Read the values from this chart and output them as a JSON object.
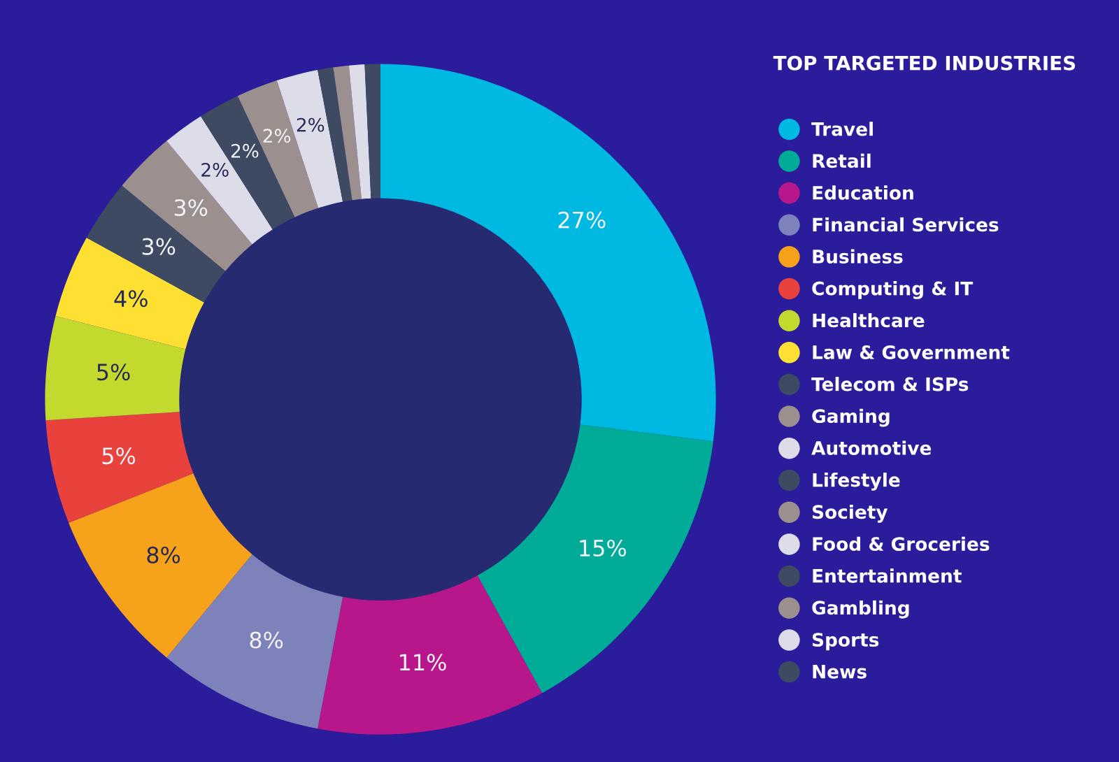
{
  "chart_data": {
    "type": "donut",
    "legend_title": "TOP TARGETED INDUSTRIES",
    "categories": [
      "Travel",
      "Retail",
      "Education",
      "Financial Services",
      "Business",
      "Computing & IT",
      "Healthcare",
      "Law & Government",
      "Telecom & ISPs",
      "Gaming",
      "Automotive",
      "Lifestyle",
      "Society",
      "Food & Groceries",
      "Entertainment",
      "Gambling",
      "Sports",
      "News"
    ],
    "values": [
      27,
      15,
      11,
      8,
      8,
      5,
      5,
      4,
      3,
      3,
      2,
      2,
      2,
      2,
      0.75,
      0.75,
      0.75,
      0.75
    ],
    "colors": [
      "#00b9e2",
      "#00ac97",
      "#b8168b",
      "#7e82ba",
      "#f7a21b",
      "#e9423c",
      "#c4d92e",
      "#fee033",
      "#3d4a62",
      "#9b908d",
      "#dddde9",
      "#3d4a62",
      "#9b908d",
      "#dddde9",
      "#3d4a62",
      "#9b908d",
      "#dddde9",
      "#3d4a62"
    ],
    "value_labels": [
      "27%",
      "15%",
      "11%",
      "8%",
      "8%",
      "5%",
      "5%",
      "4%",
      "3%",
      "3%",
      "2%",
      "2%",
      "2%",
      "2%",
      null,
      null,
      null,
      null
    ],
    "legend": "right"
  }
}
